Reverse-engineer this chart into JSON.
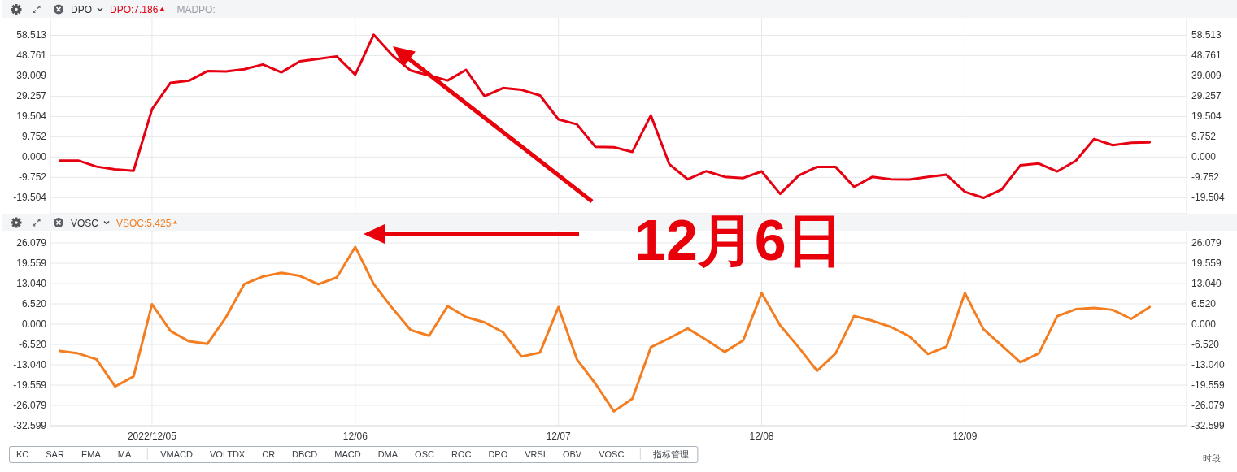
{
  "chart_data": [
    {
      "type": "line",
      "title": "DPO",
      "legend": "top left",
      "grid": true,
      "categories": [
        null,
        null,
        null,
        null,
        null,
        null,
        null,
        null,
        null,
        null,
        null,
        null,
        null,
        null,
        null,
        null,
        null,
        null,
        null,
        null,
        null,
        null,
        null,
        null,
        null,
        null,
        null,
        null,
        null,
        null,
        null,
        null,
        null,
        null,
        null,
        null,
        null,
        null,
        null,
        null,
        null,
        null,
        null,
        null,
        null,
        null,
        null,
        null,
        null,
        null,
        null,
        null,
        null,
        null,
        null,
        null,
        null,
        null,
        null,
        null,
        null
      ],
      "ylim": [
        -27.2,
        66.9
      ],
      "yticks": [
        58.513,
        48.761,
        39.009,
        29.257,
        19.504,
        9.752,
        {
          "value": 0,
          "label": "0.000"
        },
        -9.752,
        -19.504
      ],
      "y2lim": [
        -27.2,
        66.9
      ],
      "y2ticks": [
        58.513,
        48.761,
        39.009,
        29.257,
        19.504,
        9.752,
        {
          "value": 0,
          "label": "0.000"
        },
        -9.752,
        -19.504
      ],
      "series": [
        {
          "name": "DPO:7.186",
          "color": "#e60012",
          "values": [
            -1.7,
            -1.7,
            -4.6,
            -5.9,
            -6.6,
            23.0,
            35.7,
            36.7,
            41.3,
            41.1,
            42.2,
            44.5,
            40.7,
            46.0,
            47.2,
            48.4,
            39.6,
            58.8,
            49.0,
            41.6,
            39.2,
            36.8,
            41.9,
            29.3,
            33.2,
            32.3,
            29.6,
            18.1,
            15.7,
            4.9,
            4.7,
            2.5,
            20.0,
            -3.4,
            -10.7,
            -6.8,
            -9.5,
            -10.1,
            -6.9,
            -17.7,
            -8.9,
            -4.7,
            -4.7,
            -14.3,
            -9.5,
            -10.7,
            -10.8,
            -9.5,
            -8.5,
            -16.7,
            -19.6,
            -15.5,
            -4.0,
            -3.1,
            -6.9,
            -1.8,
            8.7,
            5.7,
            6.9,
            7.1,
            null
          ]
        }
      ],
      "annotations": [
        "MADPO:"
      ]
    },
    {
      "type": "line",
      "title": "VOSC",
      "legend": "top left",
      "grid": true,
      "categories": [
        null,
        null,
        null,
        null,
        null,
        "2022/12/05",
        null,
        null,
        null,
        null,
        null,
        null,
        null,
        null,
        null,
        null,
        "12/06",
        null,
        null,
        null,
        null,
        null,
        null,
        null,
        null,
        null,
        null,
        "12/07",
        null,
        null,
        null,
        null,
        null,
        null,
        null,
        null,
        null,
        null,
        "12/08",
        null,
        null,
        null,
        null,
        null,
        null,
        null,
        null,
        null,
        null,
        "12/09",
        null,
        null,
        null,
        null,
        null,
        null,
        null,
        null,
        null,
        null,
        null
      ],
      "ylim": [
        -32.599,
        30.0
      ],
      "yticks": [
        26.079,
        19.559,
        {
          "value": 13.04,
          "label": "13.040"
        },
        {
          "value": 6.52,
          "label": "6.520"
        },
        {
          "value": 0,
          "label": "0.000"
        },
        {
          "value": -6.52,
          "label": "-6.520"
        },
        {
          "value": -13.04,
          "label": "-13.040"
        },
        -19.559,
        -26.079,
        -32.599
      ],
      "y2lim": [
        -32.599,
        30.0
      ],
      "y2ticks": [
        26.079,
        19.559,
        {
          "value": 13.04,
          "label": "13.040"
        },
        {
          "value": 6.52,
          "label": "6.520"
        },
        {
          "value": 0,
          "label": "0.000"
        },
        {
          "value": -6.52,
          "label": "-6.520"
        },
        {
          "value": -13.04,
          "label": "-13.040"
        },
        -19.559,
        -26.079,
        -32.599
      ],
      "series": [
        {
          "name": "VSOC:5.425",
          "color": "#f47d20",
          "values": [
            -8.6,
            -9.4,
            -11.3,
            -20.0,
            -16.8,
            6.4,
            -2.2,
            -5.5,
            -6.3,
            2.2,
            12.9,
            15.3,
            16.5,
            15.5,
            12.8,
            15.0,
            24.8,
            12.9,
            5.2,
            -1.9,
            -3.7,
            5.8,
            2.3,
            0.6,
            -2.6,
            -10.4,
            -9.1,
            5.5,
            -11.3,
            -19.1,
            -28.0,
            -23.9,
            -7.4,
            -4.5,
            -1.4,
            -5.0,
            -8.9,
            -5.2,
            10.0,
            -0.4,
            -7.4,
            -15.0,
            -9.4,
            2.6,
            1.1,
            -0.9,
            -3.9,
            -9.6,
            -7.2,
            10.0,
            -1.6,
            -6.9,
            -12.2,
            -9.4,
            2.6,
            4.8,
            5.2,
            4.6,
            1.7,
            5.5,
            null
          ]
        }
      ]
    },
    {
      "type": "other",
      "annotations": [
        "12月6日"
      ]
    },
    {
      "type": "other",
      "categories": [
        "KC",
        "SAR",
        "EMA",
        "MA",
        null,
        "VMACD",
        "VOLTDX",
        "CR",
        "DBCD",
        "MACD",
        "DMA",
        "OSC",
        "ROC",
        "DPO",
        "VRSI",
        "OBV",
        "VOSC",
        null,
        "指标管理"
      ],
      "annotations": [
        "时段"
      ]
    }
  ]
}
